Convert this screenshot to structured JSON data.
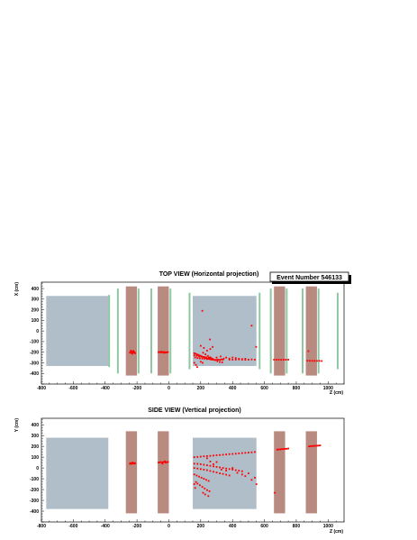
{
  "event_label": "Event Number 546133",
  "colors": {
    "detector_block": "#afbec8",
    "iron_slab": "#b98a80",
    "tracking_plane": "#8cc8a0",
    "hit": "#ff0000"
  },
  "chart_data": [
    {
      "type": "scatter",
      "title": "TOP VIEW (Horizontal projection)",
      "xlabel": "Z (cm)",
      "ylabel": "X (cm)",
      "xlim": [
        -800,
        1100
      ],
      "ylim": [
        -500,
        460
      ],
      "xticks": [
        -800,
        -600,
        -400,
        -200,
        0,
        200,
        400,
        600,
        800,
        1000
      ],
      "yticks": [
        -400,
        -300,
        -200,
        -100,
        0,
        100,
        200,
        300,
        400
      ],
      "ytick_labels": [
        "-400",
        "-300",
        "-200",
        "-100",
        "0",
        "100",
        "200",
        "300",
        "400"
      ],
      "blocks": [
        {
          "z": [
            -770,
            -380
          ],
          "y": [
            -330,
            330
          ]
        },
        {
          "z": [
            150,
            550
          ],
          "y": [
            -330,
            330
          ]
        }
      ],
      "slabs": [
        {
          "z": [
            -270,
            -200
          ],
          "y": [
            -420,
            420
          ]
        },
        {
          "z": [
            -70,
            0
          ],
          "y": [
            -420,
            420
          ]
        },
        {
          "z": [
            660,
            730
          ],
          "y": [
            -420,
            420
          ]
        },
        {
          "z": [
            860,
            930
          ],
          "y": [
            -420,
            420
          ]
        }
      ],
      "planes": [
        {
          "z": -375,
          "y": [
            -340,
            340
          ]
        },
        {
          "z": -320,
          "y": [
            -400,
            400
          ]
        },
        {
          "z": -190,
          "y": [
            -400,
            400
          ]
        },
        {
          "z": -110,
          "y": [
            -400,
            400
          ]
        },
        {
          "z": 10,
          "y": [
            -400,
            400
          ]
        },
        {
          "z": 130,
          "y": [
            -360,
            360
          ]
        },
        {
          "z": 570,
          "y": [
            -360,
            360
          ]
        },
        {
          "z": 640,
          "y": [
            -400,
            400
          ]
        },
        {
          "z": 740,
          "y": [
            -400,
            400
          ]
        },
        {
          "z": 840,
          "y": [
            -400,
            400
          ]
        },
        {
          "z": 940,
          "y": [
            -400,
            400
          ]
        },
        {
          "z": 1060,
          "y": [
            -360,
            360
          ]
        }
      ],
      "hits": [
        [
          -245,
          -205
        ],
        [
          -240,
          -200
        ],
        [
          -236,
          -195
        ],
        [
          -232,
          -210
        ],
        [
          -228,
          -200
        ],
        [
          -224,
          -192
        ],
        [
          -220,
          -205
        ],
        [
          -216,
          -198
        ],
        [
          -212,
          -210
        ],
        [
          -238,
          -185
        ],
        [
          -230,
          -215
        ],
        [
          -222,
          -188
        ],
        [
          -65,
          -200
        ],
        [
          -58,
          -198
        ],
        [
          -50,
          -202
        ],
        [
          -42,
          -199
        ],
        [
          -35,
          -201
        ],
        [
          -28,
          -197
        ],
        [
          -20,
          -203
        ],
        [
          -12,
          -200
        ],
        [
          -5,
          -199
        ],
        [
          -46,
          -195
        ],
        [
          -30,
          -206
        ],
        [
          160,
          -210
        ],
        [
          168,
          -215
        ],
        [
          176,
          -220
        ],
        [
          184,
          -225
        ],
        [
          192,
          -230
        ],
        [
          200,
          -235
        ],
        [
          208,
          -240
        ],
        [
          216,
          -245
        ],
        [
          224,
          -250
        ],
        [
          232,
          -255
        ],
        [
          240,
          -260
        ],
        [
          248,
          -262
        ],
        [
          256,
          -265
        ],
        [
          264,
          -268
        ],
        [
          272,
          -270
        ],
        [
          280,
          -270
        ],
        [
          290,
          -272
        ],
        [
          300,
          -272
        ],
        [
          310,
          -270
        ],
        [
          320,
          -272
        ],
        [
          330,
          -268
        ],
        [
          340,
          -270
        ],
        [
          160,
          -230
        ],
        [
          175,
          -235
        ],
        [
          190,
          -240
        ],
        [
          205,
          -242
        ],
        [
          220,
          -245
        ],
        [
          235,
          -248
        ],
        [
          250,
          -250
        ],
        [
          265,
          -255
        ],
        [
          165,
          -250
        ],
        [
          180,
          -255
        ],
        [
          195,
          -258
        ],
        [
          210,
          -260
        ],
        [
          225,
          -262
        ],
        [
          240,
          -265
        ],
        [
          215,
          -205
        ],
        [
          230,
          -220
        ],
        [
          245,
          -235
        ],
        [
          260,
          -250
        ],
        [
          275,
          -262
        ],
        [
          290,
          -275
        ],
        [
          305,
          -285
        ],
        [
          320,
          -292
        ],
        [
          335,
          -295
        ],
        [
          160,
          -300
        ],
        [
          170,
          -320
        ],
        [
          178,
          -340
        ],
        [
          200,
          -290
        ],
        [
          212,
          -300
        ],
        [
          200,
          -140
        ],
        [
          220,
          -160
        ],
        [
          240,
          -185
        ],
        [
          260,
          -170
        ],
        [
          275,
          -150
        ],
        [
          260,
          -250
        ],
        [
          300,
          -250
        ],
        [
          325,
          -240
        ],
        [
          345,
          -260
        ],
        [
          380,
          -270
        ],
        [
          400,
          -270
        ],
        [
          420,
          -270
        ],
        [
          440,
          -268
        ],
        [
          460,
          -270
        ],
        [
          480,
          -272
        ],
        [
          500,
          -270
        ],
        [
          520,
          -268
        ],
        [
          540,
          -270
        ],
        [
          360,
          -250
        ],
        [
          380,
          -260
        ],
        [
          400,
          -250
        ],
        [
          420,
          -255
        ],
        [
          440,
          -262
        ],
        [
          460,
          -265
        ],
        [
          480,
          -262
        ],
        [
          210,
          190
        ],
        [
          258,
          -80
        ],
        [
          520,
          50
        ],
        [
          548,
          -150
        ],
        [
          660,
          -270
        ],
        [
          675,
          -271
        ],
        [
          690,
          -270
        ],
        [
          705,
          -272
        ],
        [
          720,
          -270
        ],
        [
          735,
          -271
        ],
        [
          750,
          -270
        ],
        [
          870,
          -280
        ],
        [
          885,
          -281
        ],
        [
          900,
          -281
        ],
        [
          915,
          -282
        ],
        [
          930,
          -282
        ],
        [
          945,
          -281
        ],
        [
          960,
          -283
        ],
        [
          876,
          -190
        ]
      ]
    },
    {
      "type": "scatter",
      "title": "SIDE VIEW (Vertical projection)",
      "xlabel": "Z (cm)",
      "ylabel": "Y (cm)",
      "xlim": [
        -800,
        1100
      ],
      "ylim": [
        -500,
        460
      ],
      "xticks": [
        -800,
        -600,
        -400,
        -200,
        0,
        200,
        400,
        600,
        800,
        1000
      ],
      "yticks": [
        -400,
        -300,
        -200,
        -100,
        0,
        100,
        200,
        300,
        400
      ],
      "ytick_labels": [
        "-400",
        "-300",
        "-200",
        "-100",
        "0",
        "100",
        "200",
        "300",
        "400"
      ],
      "blocks": [
        {
          "z": [
            -770,
            -380
          ],
          "y": [
            -380,
            280
          ]
        },
        {
          "z": [
            150,
            550
          ],
          "y": [
            -380,
            280
          ]
        }
      ],
      "slabs": [
        {
          "z": [
            -270,
            -200
          ],
          "y": [
            -420,
            340
          ]
        },
        {
          "z": [
            -70,
            0
          ],
          "y": [
            -420,
            340
          ]
        },
        {
          "z": [
            660,
            730
          ],
          "y": [
            -420,
            340
          ]
        },
        {
          "z": [
            860,
            930
          ],
          "y": [
            -420,
            340
          ]
        }
      ],
      "planes": [],
      "hits": [
        [
          -245,
          40
        ],
        [
          -240,
          45
        ],
        [
          -236,
          38
        ],
        [
          -232,
          42
        ],
        [
          -228,
          50
        ],
        [
          -224,
          44
        ],
        [
          -220,
          40
        ],
        [
          -216,
          46
        ],
        [
          -212,
          42
        ],
        [
          -65,
          50
        ],
        [
          -58,
          52
        ],
        [
          -50,
          55
        ],
        [
          -42,
          48
        ],
        [
          -35,
          53
        ],
        [
          -28,
          58
        ],
        [
          -20,
          50
        ],
        [
          -12,
          54
        ],
        [
          -5,
          56
        ],
        [
          -40,
          40
        ],
        [
          -25,
          62
        ],
        [
          160,
          100
        ],
        [
          180,
          102
        ],
        [
          200,
          105
        ],
        [
          220,
          108
        ],
        [
          240,
          110
        ],
        [
          260,
          112
        ],
        [
          280,
          115
        ],
        [
          300,
          118
        ],
        [
          320,
          120
        ],
        [
          340,
          122
        ],
        [
          360,
          125
        ],
        [
          380,
          128
        ],
        [
          400,
          130
        ],
        [
          420,
          132
        ],
        [
          440,
          135
        ],
        [
          460,
          138
        ],
        [
          480,
          140
        ],
        [
          500,
          142
        ],
        [
          520,
          145
        ],
        [
          540,
          148
        ],
        [
          160,
          40
        ],
        [
          180,
          38
        ],
        [
          200,
          35
        ],
        [
          220,
          30
        ],
        [
          240,
          25
        ],
        [
          260,
          20
        ],
        [
          280,
          15
        ],
        [
          300,
          10
        ],
        [
          320,
          5
        ],
        [
          340,
          0
        ],
        [
          360,
          -5
        ],
        [
          380,
          -10
        ],
        [
          400,
          -15
        ],
        [
          420,
          -20
        ],
        [
          440,
          -25
        ],
        [
          460,
          -30
        ],
        [
          160,
          0
        ],
        [
          180,
          -5
        ],
        [
          200,
          -10
        ],
        [
          220,
          -15
        ],
        [
          240,
          -20
        ],
        [
          260,
          -28
        ],
        [
          280,
          -35
        ],
        [
          300,
          -42
        ],
        [
          320,
          -50
        ],
        [
          340,
          -55
        ],
        [
          360,
          -62
        ],
        [
          380,
          -70
        ],
        [
          160,
          -60
        ],
        [
          175,
          -70
        ],
        [
          190,
          -80
        ],
        [
          205,
          -90
        ],
        [
          220,
          -100
        ],
        [
          235,
          -110
        ],
        [
          250,
          -120
        ],
        [
          170,
          -130
        ],
        [
          180,
          -145
        ],
        [
          195,
          -160
        ],
        [
          210,
          -175
        ],
        [
          225,
          -190
        ],
        [
          240,
          -205
        ],
        [
          255,
          -215
        ],
        [
          215,
          -230
        ],
        [
          228,
          -245
        ],
        [
          240,
          90
        ],
        [
          260,
          60
        ],
        [
          280,
          35
        ],
        [
          300,
          55
        ],
        [
          330,
          -15
        ],
        [
          360,
          -25
        ],
        [
          400,
          0
        ],
        [
          430,
          -45
        ],
        [
          460,
          -60
        ],
        [
          480,
          -75
        ],
        [
          520,
          -110
        ],
        [
          550,
          -150
        ],
        [
          540,
          -90
        ],
        [
          500,
          -50
        ],
        [
          160,
          -150
        ],
        [
          165,
          -185
        ],
        [
          248,
          -260
        ],
        [
          680,
          170
        ],
        [
          690,
          172
        ],
        [
          700,
          172
        ],
        [
          710,
          175
        ],
        [
          720,
          175
        ],
        [
          730,
          177
        ],
        [
          740,
          178
        ],
        [
          750,
          180
        ],
        [
          665,
          -230
        ],
        [
          880,
          200
        ],
        [
          890,
          202
        ],
        [
          900,
          203
        ],
        [
          910,
          204
        ],
        [
          920,
          205
        ],
        [
          930,
          206
        ],
        [
          940,
          207
        ],
        [
          950,
          209
        ]
      ]
    }
  ]
}
